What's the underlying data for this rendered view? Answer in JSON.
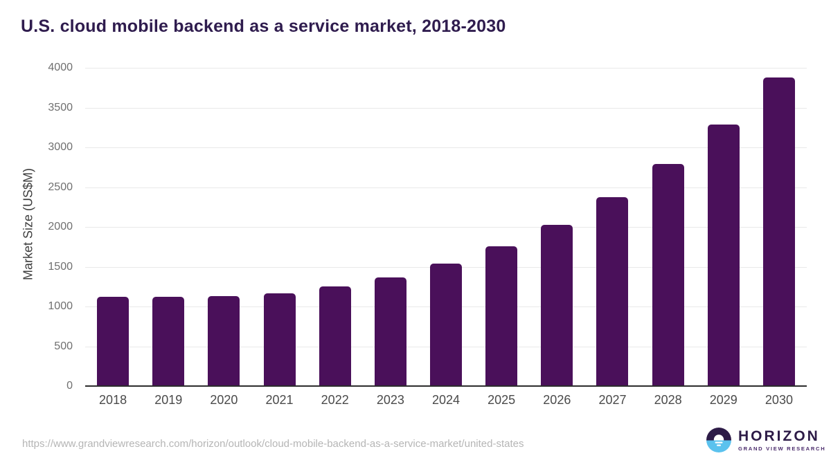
{
  "title": "U.S. cloud mobile backend as a service market, 2018-2030",
  "chart_data": {
    "type": "bar",
    "categories": [
      "2018",
      "2019",
      "2020",
      "2021",
      "2022",
      "2023",
      "2024",
      "2025",
      "2026",
      "2027",
      "2028",
      "2029",
      "2030"
    ],
    "values": [
      1120,
      1120,
      1130,
      1165,
      1250,
      1365,
      1535,
      1755,
      2025,
      2370,
      2795,
      3290,
      3875
    ],
    "title": "U.S. cloud mobile backend as a service market, 2018-2030",
    "xlabel": "",
    "ylabel": "Market Size (US$M)",
    "ylim": [
      0,
      4000
    ],
    "yticks": [
      0,
      500,
      1000,
      1500,
      2000,
      2500,
      3000,
      3500,
      4000
    ],
    "grid": true,
    "legend": "none",
    "bar_color": "#4a105a"
  },
  "footer": {
    "source_url": "https://www.grandviewresearch.com/horizon/outlook/cloud-mobile-backend-as-a-service-market/united-states",
    "logo": {
      "name": "HORIZON",
      "tagline": "GRAND VIEW RESEARCH",
      "icon": "horizon-sunset-circle-icon",
      "colors": {
        "dark_purple": "#2d1b47",
        "sky_blue": "#5bc2ee"
      }
    }
  },
  "colors": {
    "title_text": "#2f1c4e",
    "bar": "#4a105a",
    "gridline": "#e9e9e9",
    "axis_line": "#2d2d2d",
    "y_tick_text": "#6f6f6f",
    "x_tick_text": "#4a4a4a",
    "source_text": "#b5b5b5"
  }
}
